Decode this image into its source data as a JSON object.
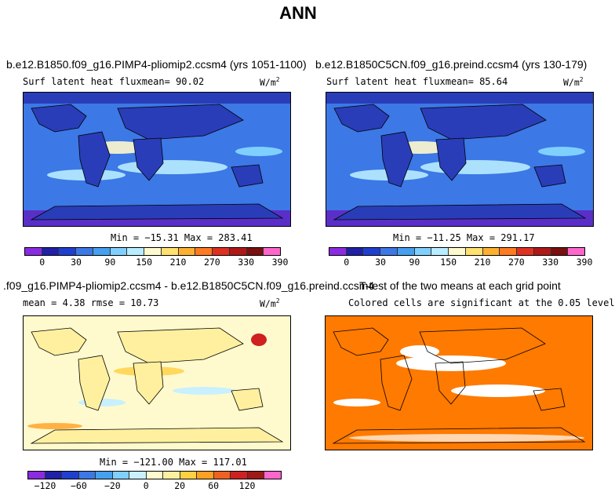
{
  "title": "ANN",
  "panels": {
    "top_left": {
      "title": "b.e12.B1850.f09_g16.PIMP4-pliomip2.ccsm4 (yrs 1051-1100)",
      "subtitle": "Surf latent heat fluxmean=  90.02",
      "units": "W/m",
      "units_sup": "2",
      "minmax": "Min = −15.31 Max = 283.41"
    },
    "top_right": {
      "title": "b.e12.B1850C5CN.f09_g16.preind.ccsm4 (yrs 130-179)",
      "subtitle": "Surf latent heat fluxmean=  85.64",
      "units": "W/m",
      "units_sup": "2",
      "minmax": "Min = −11.25 Max = 291.17"
    },
    "bottom_left": {
      "title": ".f09_g16.PIMP4-pliomip2.ccsm4 - b.e12.B1850C5CN.f09_g16.preind.ccsm4",
      "subtitle": "mean =    4.38     rmse =   10.73",
      "units": "W/m",
      "units_sup": "2",
      "minmax": "Min = −121.00 Max = 117.01"
    },
    "bottom_right": {
      "title": "T-test of the two means at each grid point",
      "subtitle": "Colored cells are significant at the 0.05 level"
    }
  },
  "colorbars": {
    "abs": {
      "colors": [
        "#8a2be2",
        "#2020a8",
        "#1f3fd0",
        "#3c78e6",
        "#46a0f0",
        "#7fd0ff",
        "#b8ecff",
        "#fffacd",
        "#ffe070",
        "#ffb030",
        "#ff7a20",
        "#e03020",
        "#b01818",
        "#7a1010",
        "#ff66cc"
      ],
      "labels": [
        "0",
        "30",
        "90",
        "150",
        "210",
        "270",
        "330",
        "390"
      ]
    },
    "diff": {
      "colors": [
        "#8a2be2",
        "#2020a8",
        "#1f3fd0",
        "#3c78e6",
        "#46a0f0",
        "#7fd0ff",
        "#c8f0ff",
        "#fffacd",
        "#fff0a0",
        "#ffd040",
        "#ffa020",
        "#f06020",
        "#d02020",
        "#a01818",
        "#ff66cc"
      ],
      "labels": [
        "−120",
        "−60",
        "−20",
        "0",
        "20",
        "60",
        "120"
      ]
    }
  },
  "map_colors": {
    "ocean_abs": "#3c78e6",
    "land_abs": "#2a3db8",
    "ocean_diff": "#fffacd",
    "land_diff": "#fff0a0",
    "ttest": "#ff7a00"
  }
}
